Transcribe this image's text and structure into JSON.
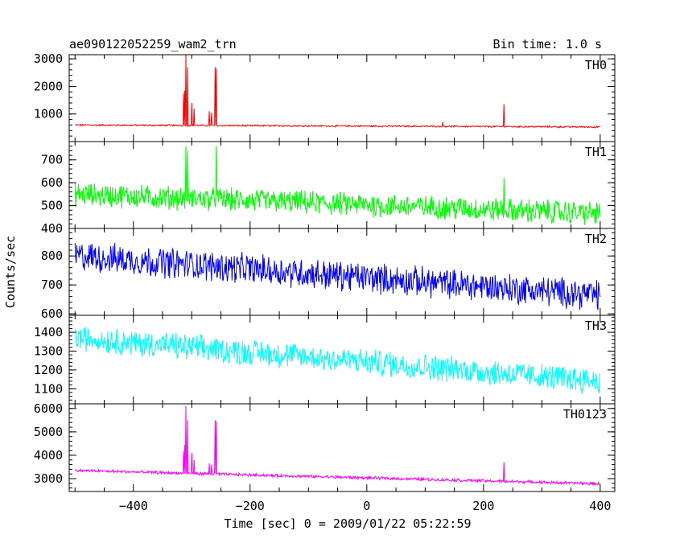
{
  "chart_data": {
    "type": "line",
    "title": "ae090122052259_wam2_trn",
    "subtitle": "Bin time: 1.0 s",
    "xlabel": "Time [sec] 0 = 2009/01/22 05:22:59",
    "ylabel": "Counts/sec",
    "xlim": [
      -510,
      425
    ],
    "xticks": [
      -400,
      -200,
      0,
      200,
      400
    ],
    "x_tick_labels": [
      "−400",
      "−200",
      "0",
      "200",
      "400"
    ],
    "grid": false,
    "panels": [
      {
        "name": "TH0",
        "color": "#ff0000",
        "ylim": [
          0,
          3150
        ],
        "yticks": [
          1000,
          2000,
          3000
        ],
        "ytick_labels": [
          "1000",
          "2000",
          "3000"
        ],
        "base_start": 600,
        "base_end": 530,
        "noise": 25,
        "peaks": [
          [
            -310,
            3150
          ],
          [
            -307,
            2700
          ],
          [
            -312,
            1850
          ],
          [
            -314,
            1750
          ],
          [
            -300,
            1400
          ],
          [
            -296,
            1200
          ],
          [
            -270,
            1100
          ],
          [
            -266,
            1050
          ],
          [
            -260,
            2700
          ],
          [
            -258,
            2650
          ],
          [
            130,
            700
          ],
          [
            235,
            1350
          ]
        ]
      },
      {
        "name": "TH1",
        "color": "#00ff00",
        "ylim": [
          400,
          780
        ],
        "yticks": [
          400,
          500,
          600,
          700
        ],
        "ytick_labels": [
          "400",
          "500",
          "600",
          "700"
        ],
        "base_start": 550,
        "base_end": 465,
        "noise": 45,
        "peaks": [
          [
            -310,
            760
          ],
          [
            -307,
            740
          ],
          [
            -258,
            760
          ],
          [
            235,
            620
          ]
        ]
      },
      {
        "name": "TH2",
        "color": "#0000ff",
        "ylim": [
          595,
          895
        ],
        "yticks": [
          600,
          700,
          800
        ],
        "ytick_labels": [
          "600",
          "700",
          "800"
        ],
        "base_start": 800,
        "base_end": 665,
        "noise": 45,
        "peaks": []
      },
      {
        "name": "TH3",
        "color": "#00ffff",
        "ylim": [
          1020,
          1490
        ],
        "yticks": [
          1100,
          1200,
          1300,
          1400
        ],
        "ytick_labels": [
          "1100",
          "1200",
          "1300",
          "1400"
        ],
        "base_start": 1370,
        "base_end": 1140,
        "noise": 60,
        "peaks": []
      },
      {
        "name": "TH0123",
        "color": "#ff00ff",
        "ylim": [
          2450,
          6200
        ],
        "yticks": [
          3000,
          4000,
          5000,
          6000
        ],
        "ytick_labels": [
          "3000",
          "4000",
          "5000",
          "6000"
        ],
        "base_start": 3350,
        "base_end": 2780,
        "noise": 55,
        "peaks": [
          [
            -310,
            6100
          ],
          [
            -307,
            5500
          ],
          [
            -312,
            4450
          ],
          [
            -314,
            4200
          ],
          [
            -300,
            4100
          ],
          [
            -296,
            3800
          ],
          [
            -270,
            3650
          ],
          [
            -266,
            3600
          ],
          [
            -260,
            5500
          ],
          [
            -258,
            5450
          ],
          [
            235,
            3700
          ]
        ]
      }
    ]
  }
}
